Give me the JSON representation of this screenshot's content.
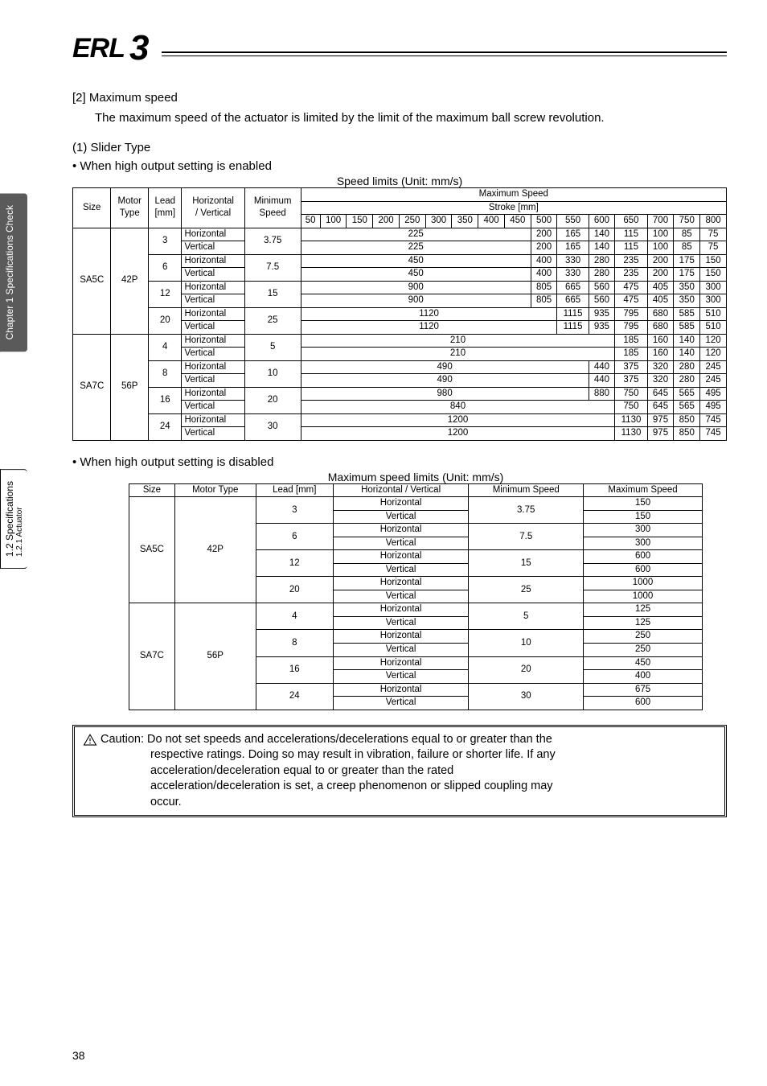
{
  "logo_text": "ERL",
  "logo_num": "3",
  "tabs": {
    "t1_line1": "Chapter 1 Specifications Check",
    "t2_line1": "1.2 Specifications",
    "t2_line2": "1.2.1 Actuator"
  },
  "section_heading": "[2] Maximum speed",
  "section_text": "The maximum speed of the actuator is limited by the limit of the maximum ball screw revolution.",
  "slider_heading": "(1) Slider Type",
  "enabled_heading": "• When high output setting is enabled",
  "disabled_heading": "• When high output setting is disabled",
  "table1": {
    "caption": "Speed limits (Unit: mm/s)",
    "h_size": "Size",
    "h_motor_l1": "Motor",
    "h_motor_l2": "Type",
    "h_lead_l1": "Lead",
    "h_lead_l2": "[mm]",
    "h_hv_l1": "Horizontal",
    "h_hv_l2": "/ Vertical",
    "h_min_l1": "Minimum",
    "h_min_l2": "Speed",
    "h_max": "Maximum Speed",
    "h_stroke": "Stroke [mm]",
    "strokes": [
      "50",
      "100",
      "150",
      "200",
      "250",
      "300",
      "350",
      "400",
      "450",
      "500",
      "550",
      "600",
      "650",
      "700",
      "750",
      "800"
    ],
    "groups": [
      {
        "size": "SA5C",
        "motor": "42P",
        "leads": [
          {
            "lead": "3",
            "min": "3.75",
            "rows": [
              {
                "hv": "Horizontal",
                "span": 225,
                "spanCols": 9,
                "vals": [
                  "200",
                  "165",
                  "140",
                  "115",
                  "100",
                  "85",
                  "75"
                ]
              },
              {
                "hv": "Vertical",
                "span": 225,
                "spanCols": 9,
                "vals": [
                  "200",
                  "165",
                  "140",
                  "115",
                  "100",
                  "85",
                  "75"
                ]
              }
            ]
          },
          {
            "lead": "6",
            "min": "7.5",
            "rows": [
              {
                "hv": "Horizontal",
                "span": 450,
                "spanCols": 9,
                "vals": [
                  "400",
                  "330",
                  "280",
                  "235",
                  "200",
                  "175",
                  "150"
                ]
              },
              {
                "hv": "Vertical",
                "span": 450,
                "spanCols": 9,
                "vals": [
                  "400",
                  "330",
                  "280",
                  "235",
                  "200",
                  "175",
                  "150"
                ]
              }
            ]
          },
          {
            "lead": "12",
            "min": "15",
            "rows": [
              {
                "hv": "Horizontal",
                "span": 900,
                "spanCols": 9,
                "vals": [
                  "805",
                  "665",
                  "560",
                  "475",
                  "405",
                  "350",
                  "300"
                ]
              },
              {
                "hv": "Vertical",
                "span": 900,
                "spanCols": 9,
                "vals": [
                  "805",
                  "665",
                  "560",
                  "475",
                  "405",
                  "350",
                  "300"
                ]
              }
            ]
          },
          {
            "lead": "20",
            "min": "25",
            "rows": [
              {
                "hv": "Horizontal",
                "span": 1120,
                "spanCols": 10,
                "vals": [
                  "1115",
                  "935",
                  "795",
                  "680",
                  "585",
                  "510"
                ]
              },
              {
                "hv": "Vertical",
                "span": 1120,
                "spanCols": 10,
                "vals": [
                  "1115",
                  "935",
                  "795",
                  "680",
                  "585",
                  "510"
                ]
              }
            ]
          }
        ]
      },
      {
        "size": "SA7C",
        "motor": "56P",
        "leads": [
          {
            "lead": "4",
            "min": "5",
            "rows": [
              {
                "hv": "Horizontal",
                "span": 210,
                "spanCols": 12,
                "vals": [
                  "185",
                  "160",
                  "140",
                  "120"
                ]
              },
              {
                "hv": "Vertical",
                "span": 210,
                "spanCols": 12,
                "vals": [
                  "185",
                  "160",
                  "140",
                  "120"
                ]
              }
            ]
          },
          {
            "lead": "8",
            "min": "10",
            "rows": [
              {
                "hv": "Horizontal",
                "span": 490,
                "spanCols": 11,
                "vals": [
                  "440",
                  "375",
                  "320",
                  "280",
                  "245"
                ]
              },
              {
                "hv": "Vertical",
                "span": 490,
                "spanCols": 11,
                "vals": [
                  "440",
                  "375",
                  "320",
                  "280",
                  "245"
                ]
              }
            ]
          },
          {
            "lead": "16",
            "min": "20",
            "rows": [
              {
                "hv": "Horizontal",
                "span": 980,
                "spanCols": 11,
                "vals": [
                  "880",
                  "750",
                  "645",
                  "565",
                  "495"
                ]
              },
              {
                "hv": "Vertical",
                "span": 840,
                "spanCols": 12,
                "vals": [
                  "750",
                  "645",
                  "565",
                  "495"
                ]
              }
            ]
          },
          {
            "lead": "24",
            "min": "30",
            "rows": [
              {
                "hv": "Horizontal",
                "span": 1200,
                "spanCols": 12,
                "vals": [
                  "1130",
                  "975",
                  "850",
                  "745"
                ]
              },
              {
                "hv": "Vertical",
                "span": 1200,
                "spanCols": 12,
                "vals": [
                  "1130",
                  "975",
                  "850",
                  "745"
                ]
              }
            ]
          }
        ]
      }
    ]
  },
  "table2": {
    "caption": "Maximum speed limits (Unit: mm/s)",
    "headers": [
      "Size",
      "Motor Type",
      "Lead [mm]",
      "Horizontal / Vertical",
      "Minimum Speed",
      "Maximum Speed"
    ],
    "groups": [
      {
        "size": "SA5C",
        "motor": "42P",
        "leads": [
          {
            "lead": "3",
            "min": "3.75",
            "h": "150",
            "v": "150"
          },
          {
            "lead": "6",
            "min": "7.5",
            "h": "300",
            "v": "300"
          },
          {
            "lead": "12",
            "min": "15",
            "h": "600",
            "v": "600"
          },
          {
            "lead": "20",
            "min": "25",
            "h": "1000",
            "v": "1000"
          }
        ]
      },
      {
        "size": "SA7C",
        "motor": "56P",
        "leads": [
          {
            "lead": "4",
            "min": "5",
            "h": "125",
            "v": "125"
          },
          {
            "lead": "8",
            "min": "10",
            "h": "250",
            "v": "250"
          },
          {
            "lead": "16",
            "min": "20",
            "h": "450",
            "v": "400"
          },
          {
            "lead": "24",
            "min": "30",
            "h": "675",
            "v": "600"
          }
        ]
      }
    ],
    "hv_h": "Horizontal",
    "hv_v": "Vertical"
  },
  "caution": {
    "label": "Caution:",
    "l1": " Do not set speeds and accelerations/decelerations equal to or greater than the",
    "l2": "respective ratings. Doing so may result in vibration, failure or shorter life. If any",
    "l3": "acceleration/deceleration equal to or greater than the rated",
    "l4": "acceleration/deceleration is set, a creep phenomenon or slipped coupling may",
    "l5": "occur."
  },
  "pagenum": "38"
}
